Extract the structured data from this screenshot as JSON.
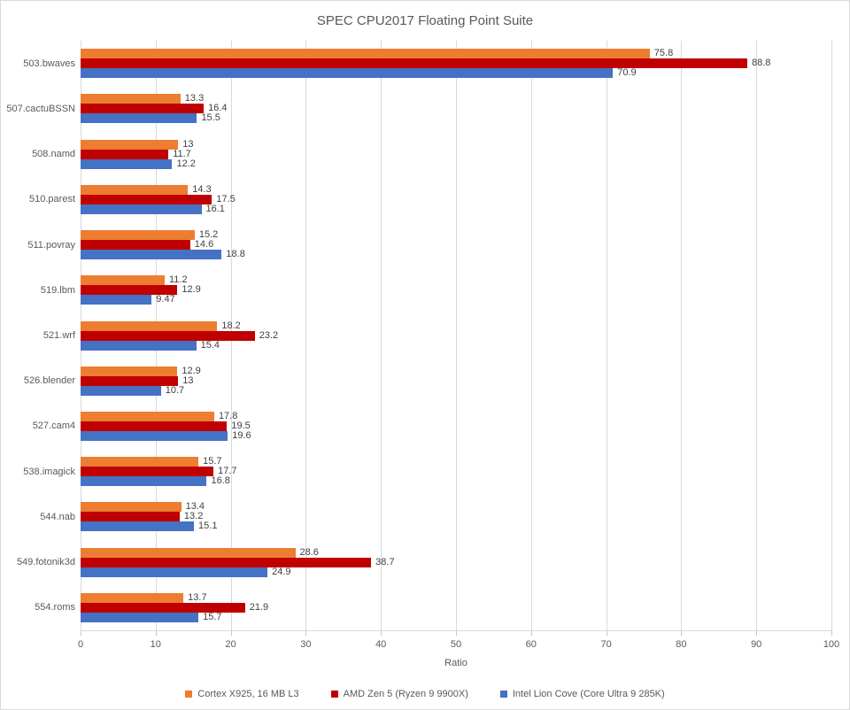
{
  "chart_data": {
    "type": "bar",
    "orientation": "horizontal",
    "title": "SPEC CPU2017 Floating Point Suite",
    "xlabel": "Ratio",
    "xlim": [
      0,
      100
    ],
    "x_ticks": [
      0,
      10,
      20,
      30,
      40,
      50,
      60,
      70,
      80,
      90,
      100
    ],
    "grid": "vertical",
    "legend_position": "bottom",
    "data_labels": "outside-end",
    "categories": [
      "503.bwaves",
      "507.cactuBSSN",
      "508.namd",
      "510.parest",
      "511.povray",
      "519.lbm",
      "521.wrf",
      "526.blender",
      "527.cam4",
      "538.imagick",
      "544.nab",
      "549.fotonik3d",
      "554.roms"
    ],
    "series": [
      {
        "name": "Cortex X925, 16 MB L3",
        "color": "#ED7D31",
        "values": [
          75.8,
          13.3,
          13,
          14.3,
          15.2,
          11.2,
          18.2,
          12.9,
          17.8,
          15.7,
          13.4,
          28.6,
          13.7
        ]
      },
      {
        "name": "AMD Zen 5 (Ryzen 9 9900X)",
        "color": "#C00000",
        "values": [
          88.8,
          16.4,
          11.7,
          17.5,
          14.6,
          12.9,
          23.2,
          13,
          19.5,
          17.7,
          13.2,
          38.7,
          21.9
        ]
      },
      {
        "name": "Intel Lion Cove (Core Ultra 9 285K)",
        "color": "#4472C4",
        "values": [
          70.9,
          15.5,
          12.2,
          16.1,
          18.8,
          9.47,
          15.4,
          10.7,
          19.6,
          16.8,
          15.1,
          24.9,
          15.7
        ]
      }
    ]
  },
  "colors": {
    "background": "#FFFFFF",
    "border": "#D9D9D9",
    "gridline": "#D9D9D9",
    "tick": "#C6C6C6",
    "title_text": "#595959",
    "axis_text": "#595959",
    "value_label_text": "#404040"
  }
}
